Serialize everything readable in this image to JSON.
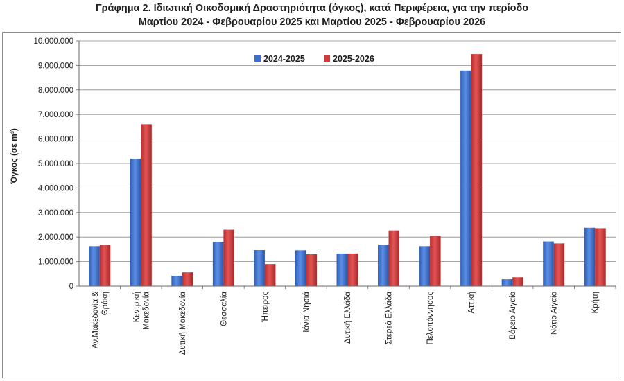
{
  "title": {
    "line1": "Γράφημα 2.  Ιδιωτική Οικοδομική Δραστηριότητα (όγκος), κατά Περιφέρεια, για την περίοδο",
    "line2": "Μαρτίου 2024 - Φεβρουαρίου 2025 και Μαρτίου 2025 - Φεβρουαρίου 2026"
  },
  "chart_data": {
    "type": "bar",
    "ylabel": "Όγκος (σε m³)",
    "ylim": [
      0,
      10000000
    ],
    "ytick_step": 1000000,
    "ytick_labels": [
      "0",
      "1.000.000",
      "2.000.000",
      "3.000.000",
      "4.000.000",
      "5.000.000",
      "6.000.000",
      "7.000.000",
      "8.000.000",
      "9.000.000",
      "10.000.000"
    ],
    "grid": true,
    "legend_position": "top-center",
    "categories": [
      [
        "Αν.Μακεδονία &",
        "Θράκη"
      ],
      [
        "Κεντρική",
        "Μακεδονία"
      ],
      [
        "Δυτική Μακεδονία"
      ],
      [
        "Θεσσαλία"
      ],
      [
        "Ήπειρος"
      ],
      [
        "Ιόνια Νησιά"
      ],
      [
        "Δυτική Ελλάδα"
      ],
      [
        "Στερεά Ελλάδα"
      ],
      [
        "Πελοπόννησος"
      ],
      [
        "Αττική"
      ],
      [
        "Βόρειο Αιγαίο"
      ],
      [
        "Νότιο Αιγαίο"
      ],
      [
        "Κρήτη"
      ]
    ],
    "series": [
      {
        "name": "2024-2025",
        "color": "#3a6fd0",
        "values": [
          1630000,
          5200000,
          420000,
          1800000,
          1470000,
          1460000,
          1330000,
          1690000,
          1630000,
          8790000,
          280000,
          1820000,
          2380000
        ]
      },
      {
        "name": "2025-2026",
        "color": "#d23a3a",
        "values": [
          1690000,
          6600000,
          560000,
          2300000,
          900000,
          1300000,
          1330000,
          2270000,
          2050000,
          9460000,
          360000,
          1740000,
          2360000
        ]
      }
    ]
  }
}
